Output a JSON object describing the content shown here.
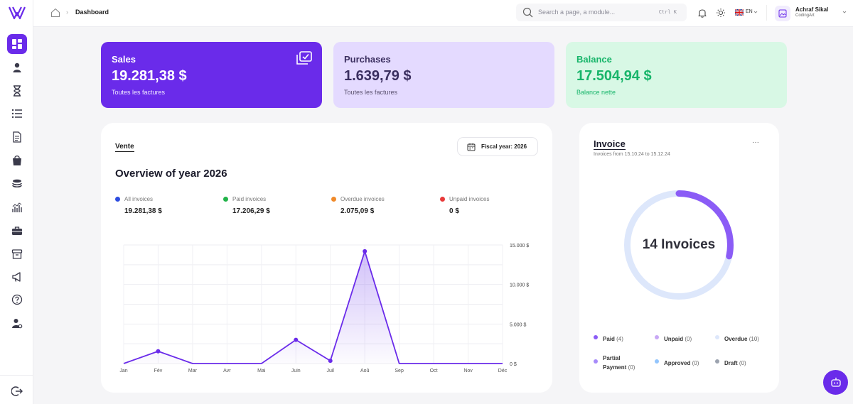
{
  "header": {
    "breadcrumb": "Dashboard",
    "search_placeholder": "Search a page, a module...",
    "search_shortcut": "Ctrl K",
    "language": "EN",
    "user": {
      "name": "Achraf Sikal",
      "org": "CodingArt"
    }
  },
  "sidebar": {
    "items": [
      "dashboard",
      "users",
      "hourglass",
      "list",
      "document",
      "shopping-bag",
      "coins",
      "analytics",
      "briefcase",
      "archive",
      "megaphone",
      "help",
      "user-settings"
    ],
    "bottom": "logout"
  },
  "stats": {
    "sales": {
      "label": "Sales",
      "value": "19.281,38 $",
      "sub": "Toutes les factures"
    },
    "purchases": {
      "label": "Purchases",
      "value": "1.639,79 $",
      "sub": "Toutes les factures"
    },
    "balance": {
      "label": "Balance",
      "value": "17.504,94 $",
      "sub": "Balance nette"
    }
  },
  "overview": {
    "tab": "Vente",
    "fiscal_year": "Fiscal year: 2026",
    "title": "Overview of year 2026",
    "legend": [
      {
        "label": "All invoices",
        "value": "19.281,38 $",
        "color": "#2d4de0"
      },
      {
        "label": "Paid invoices",
        "value": "17.206,29 $",
        "color": "#22b34a"
      },
      {
        "label": "Overdue invoices",
        "value": "2.075,09 $",
        "color": "#f08a2a"
      },
      {
        "label": "Unpaid invoices",
        "value": "0 $",
        "color": "#e83a3a"
      }
    ]
  },
  "chart_data": {
    "type": "area",
    "categories": [
      "Jan",
      "Fév",
      "Mar",
      "Avr",
      "Mai",
      "Juin",
      "Juil",
      "Aoû",
      "Sep",
      "Oct",
      "Nov",
      "Déc"
    ],
    "series": [
      {
        "values": [
          0,
          1550,
          0,
          0,
          0,
          3000,
          350,
          14200,
          0,
          0,
          0,
          0
        ],
        "color": "#6a2bea"
      }
    ],
    "y_ticks": [
      "15.000 $",
      "10.000 $",
      "5.000 $",
      "0 $"
    ],
    "ylim": [
      0,
      15000
    ],
    "grid": true
  },
  "invoice": {
    "title": "Invoice",
    "subtitle": "Invoices from 15.10.24 to 15.12.24",
    "more": "···",
    "center_label": "14 Invoices",
    "total": 14,
    "progress": 0.285,
    "legend": [
      {
        "label": "Paid",
        "count": "(4)",
        "color": "#8b5cf6"
      },
      {
        "label": "Unpaid",
        "count": "(0)",
        "color": "#c8a8f5"
      },
      {
        "label": "Overdue",
        "count": "(10)",
        "color": "#dde7fb"
      },
      {
        "label": "Partial",
        "label2": "Payment",
        "count": "(0)",
        "color": "#a78bfa"
      },
      {
        "label": "Approved",
        "count": "(0)",
        "color": "#93c5fd"
      },
      {
        "label": "Draft",
        "count": "(0)",
        "color": "#9ca3af"
      }
    ]
  }
}
